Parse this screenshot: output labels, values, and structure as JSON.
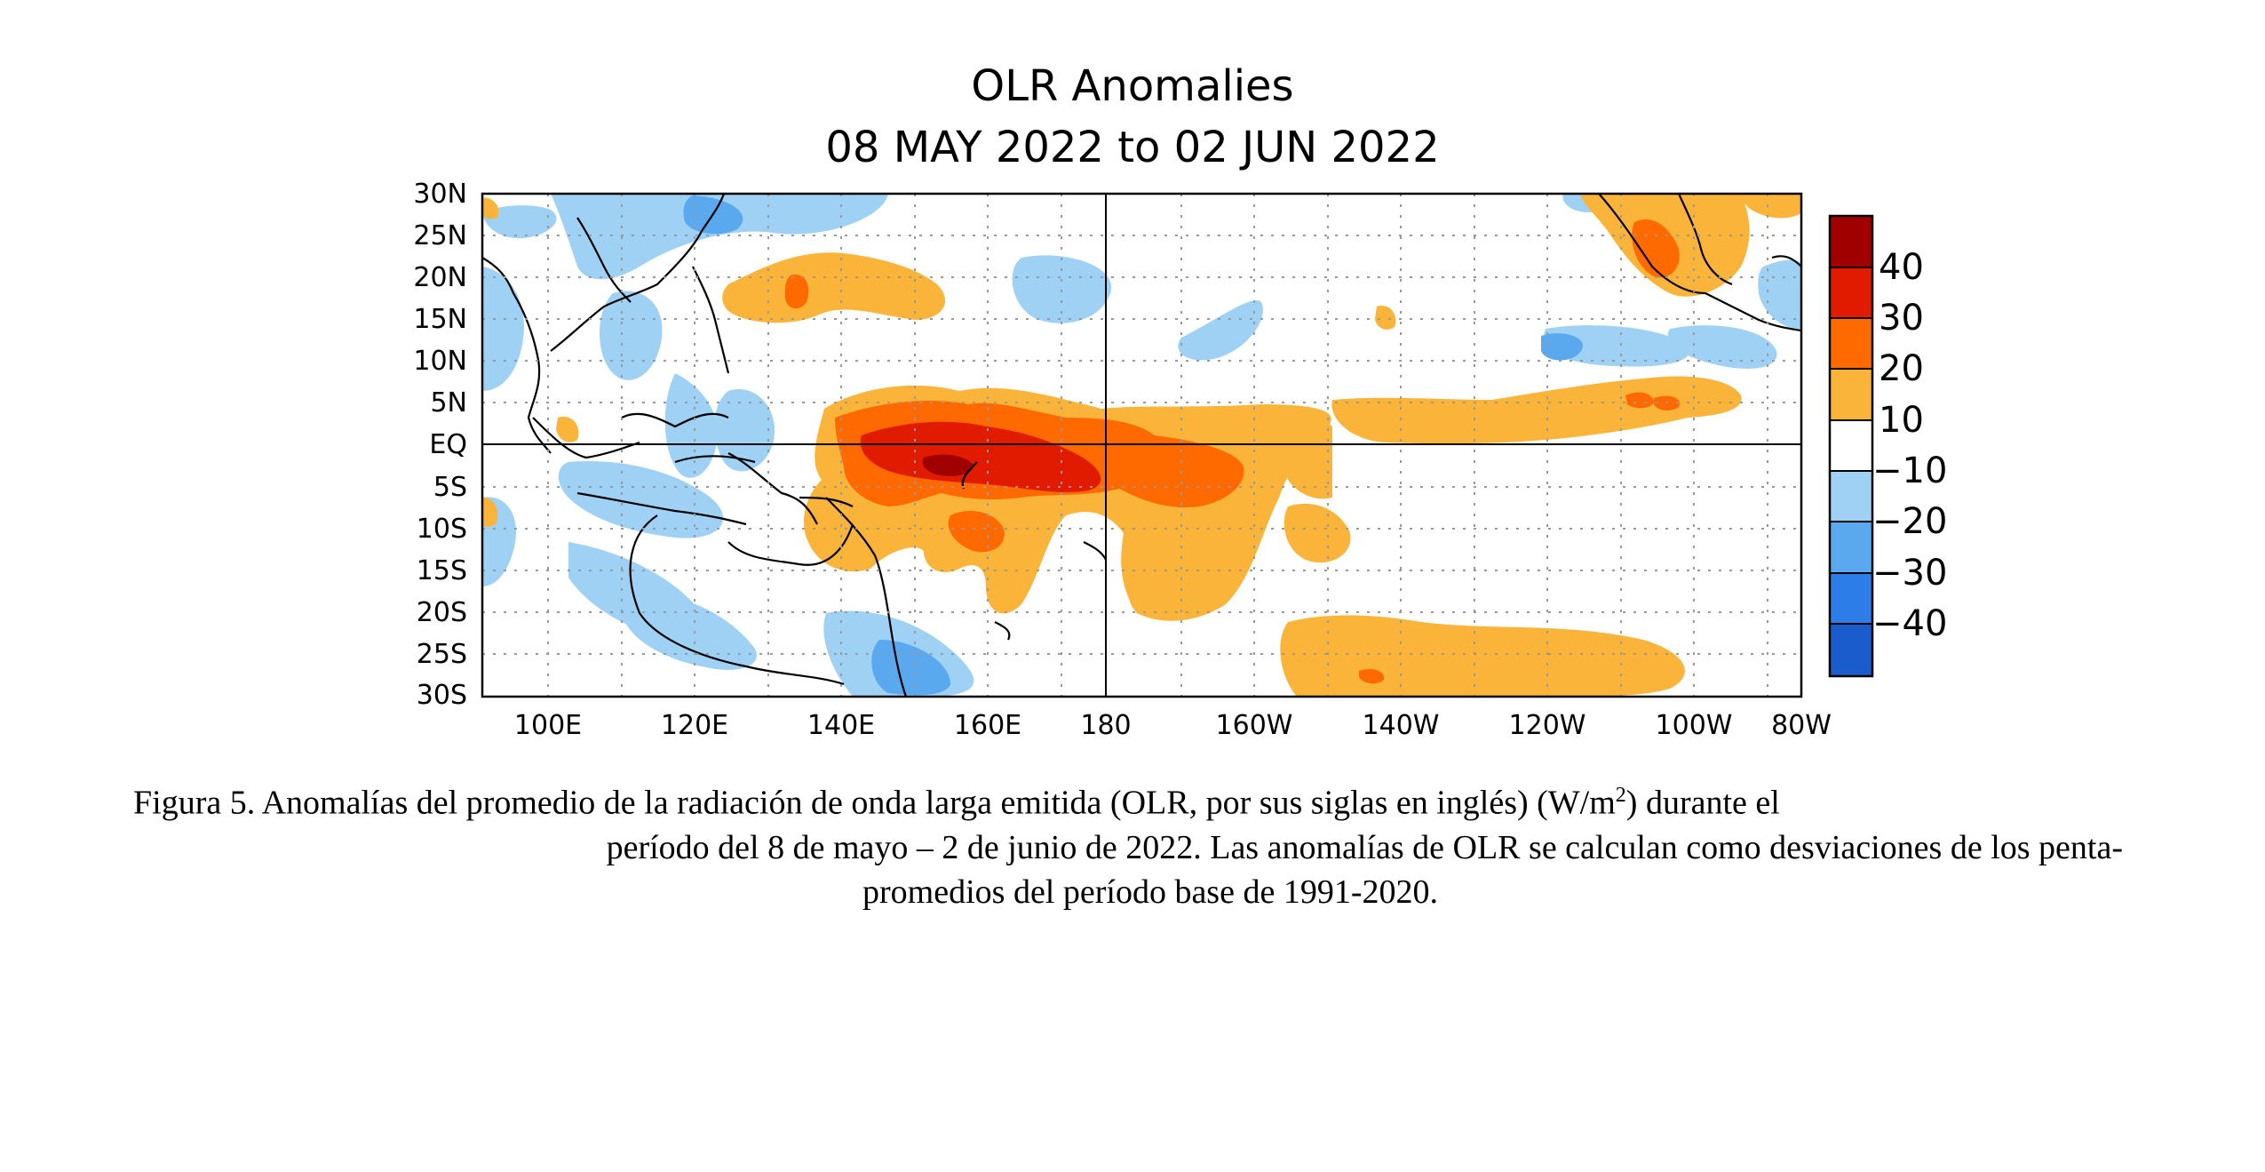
{
  "map": {
    "title_line1": "OLR Anomalies",
    "title_line2": "08 MAY 2022 to 02 JUN 2022",
    "lat_ticks": [
      "30N",
      "25N",
      "20N",
      "15N",
      "10N",
      "5N",
      "EQ",
      "5S",
      "10S",
      "15S",
      "20S",
      "25S",
      "30S"
    ],
    "lon_ticks": [
      "100E",
      "120E",
      "140E",
      "160E",
      "180",
      "160W",
      "140W",
      "120W",
      "100W",
      "80W"
    ],
    "colorbar": {
      "labels": [
        "40",
        "30",
        "20",
        "10",
        "−10",
        "−20",
        "−30",
        "−40"
      ],
      "colors": [
        "#a00000",
        "#e01b00",
        "#ff6a00",
        "#fbb43a",
        "#ffffff",
        "#9fd1f5",
        "#5aa8ee",
        "#2d7de8",
        "#1a5ccc"
      ]
    },
    "colors": {
      "pos_weak": "#fbb43a",
      "pos_mid": "#ff6a00",
      "pos_strong": "#e01b00",
      "pos_max": "#a00000",
      "neg_weak": "#9fd1f5",
      "neg_mid": "#5aa8ee",
      "neg_strong": "#2d7de8"
    }
  },
  "caption": {
    "line1_a": "Figura 5. Anomalías del promedio de la radiación de onda larga emitida (OLR, por sus siglas en inglés) (W/m",
    "line1_sup": "2",
    "line1_b": ") durante el",
    "line2": "período del 8 de mayo – 2 de junio de 2022.  Las anomalías de OLR se calculan como desviaciones de los penta-",
    "line3": "promedios del período base de 1991-2020."
  }
}
